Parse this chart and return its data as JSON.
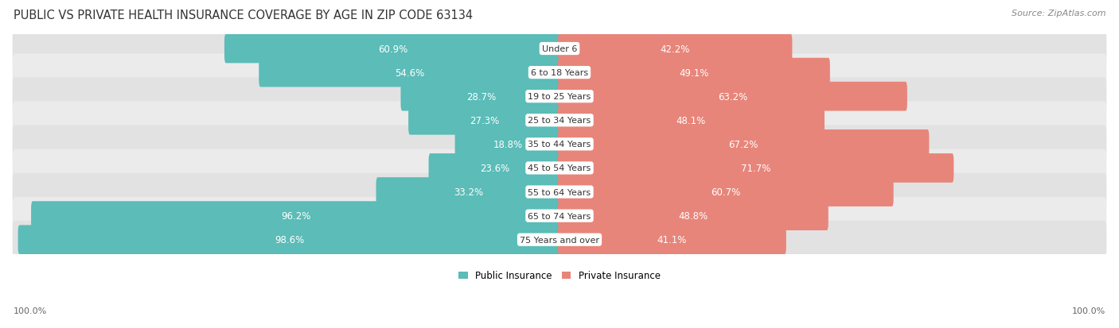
{
  "title": "PUBLIC VS PRIVATE HEALTH INSURANCE COVERAGE BY AGE IN ZIP CODE 63134",
  "source": "Source: ZipAtlas.com",
  "categories": [
    "Under 6",
    "6 to 18 Years",
    "19 to 25 Years",
    "25 to 34 Years",
    "35 to 44 Years",
    "45 to 54 Years",
    "55 to 64 Years",
    "65 to 74 Years",
    "75 Years and over"
  ],
  "public_values": [
    60.9,
    54.6,
    28.7,
    27.3,
    18.8,
    23.6,
    33.2,
    96.2,
    98.6
  ],
  "private_values": [
    42.2,
    49.1,
    63.2,
    48.1,
    67.2,
    71.7,
    60.7,
    48.8,
    41.1
  ],
  "public_color": "#5bbcb8",
  "private_color": "#e8857a",
  "row_bg_colors": [
    "#e2e2e2",
    "#ebebeb"
  ],
  "max_value": 100.0,
  "title_fontsize": 10.5,
  "source_fontsize": 8,
  "bar_label_fontsize": 8.5,
  "category_fontsize": 8,
  "legend_fontsize": 8.5,
  "axis_label_fontsize": 8
}
